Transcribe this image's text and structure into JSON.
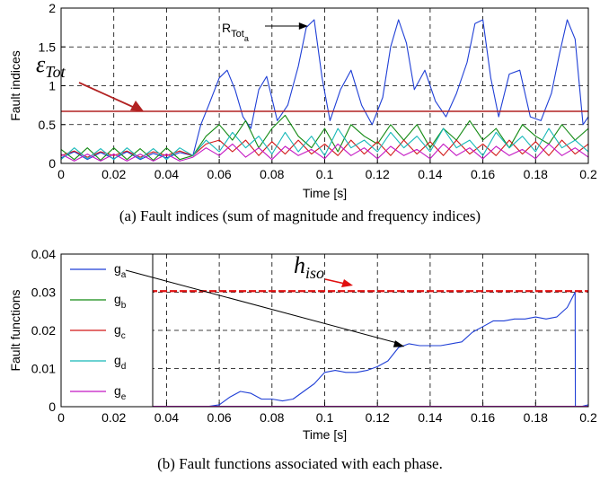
{
  "chart_data": [
    {
      "type": "line",
      "caption": "(a) Fault indices (sum of magnitude and frequency indices)",
      "xlabel": "Time [s]",
      "ylabel": "Fault indices",
      "xlim": [
        0,
        0.2
      ],
      "ylim": [
        0,
        2
      ],
      "xticks": [
        "0",
        "0.02",
        "0.04",
        "0.06",
        "0.08",
        "0.1",
        "0.12",
        "0.14",
        "0.16",
        "0.18",
        "0.2"
      ],
      "yticks": [
        "0",
        "0.5",
        "1",
        "1.5",
        "2"
      ],
      "grid": true,
      "threshold": {
        "label": "ε",
        "label_sub": "Tot",
        "value": 0.67,
        "color": "#b22222"
      },
      "annotation": {
        "label": "R",
        "label_sub": "Tot",
        "label_subsub": "a",
        "x": 0.095,
        "y": 1.85
      },
      "series": [
        {
          "color": "#1f3fd6",
          "x": [
            0,
            0.005,
            0.01,
            0.015,
            0.02,
            0.025,
            0.03,
            0.035,
            0.04,
            0.045,
            0.05,
            0.053,
            0.056,
            0.06,
            0.063,
            0.066,
            0.069,
            0.072,
            0.075,
            0.078,
            0.082,
            0.086,
            0.09,
            0.093,
            0.096,
            0.099,
            0.102,
            0.106,
            0.11,
            0.114,
            0.118,
            0.122,
            0.125,
            0.128,
            0.131,
            0.134,
            0.138,
            0.142,
            0.146,
            0.15,
            0.154,
            0.157,
            0.16,
            0.163,
            0.166,
            0.17,
            0.174,
            0.178,
            0.182,
            0.186,
            0.189,
            0.192,
            0.195,
            0.198,
            0.2
          ],
          "y": [
            0.07,
            0.15,
            0.05,
            0.14,
            0.06,
            0.15,
            0.05,
            0.13,
            0.07,
            0.14,
            0.1,
            0.5,
            0.75,
            1.1,
            1.2,
            0.95,
            0.6,
            0.45,
            0.95,
            1.12,
            0.55,
            0.75,
            1.25,
            1.75,
            1.85,
            1.1,
            0.55,
            0.95,
            1.2,
            0.75,
            0.5,
            0.85,
            1.5,
            1.85,
            1.55,
            0.95,
            1.2,
            0.8,
            0.6,
            0.9,
            1.3,
            1.8,
            1.85,
            1.1,
            0.6,
            1.15,
            1.2,
            0.6,
            0.55,
            0.9,
            1.4,
            1.85,
            1.6,
            0.5,
            0.6
          ]
        },
        {
          "color": "#138a13",
          "x": [
            0,
            0.005,
            0.01,
            0.015,
            0.02,
            0.025,
            0.03,
            0.035,
            0.04,
            0.045,
            0.05,
            0.055,
            0.06,
            0.065,
            0.07,
            0.075,
            0.08,
            0.085,
            0.09,
            0.095,
            0.1,
            0.105,
            0.11,
            0.115,
            0.12,
            0.125,
            0.13,
            0.135,
            0.14,
            0.145,
            0.15,
            0.155,
            0.16,
            0.165,
            0.17,
            0.175,
            0.18,
            0.185,
            0.19,
            0.195,
            0.2
          ],
          "y": [
            0.18,
            0.05,
            0.2,
            0.04,
            0.2,
            0.05,
            0.19,
            0.04,
            0.2,
            0.05,
            0.1,
            0.35,
            0.5,
            0.3,
            0.55,
            0.2,
            0.45,
            0.62,
            0.35,
            0.2,
            0.45,
            0.15,
            0.5,
            0.35,
            0.25,
            0.5,
            0.3,
            0.5,
            0.2,
            0.45,
            0.3,
            0.55,
            0.3,
            0.45,
            0.2,
            0.5,
            0.35,
            0.25,
            0.5,
            0.3,
            0.45
          ]
        },
        {
          "color": "#d21818",
          "x": [
            0,
            0.005,
            0.01,
            0.015,
            0.02,
            0.025,
            0.03,
            0.035,
            0.04,
            0.045,
            0.05,
            0.055,
            0.06,
            0.065,
            0.07,
            0.075,
            0.08,
            0.085,
            0.09,
            0.095,
            0.1,
            0.105,
            0.11,
            0.115,
            0.12,
            0.125,
            0.13,
            0.135,
            0.14,
            0.145,
            0.15,
            0.155,
            0.16,
            0.165,
            0.17,
            0.175,
            0.18,
            0.185,
            0.19,
            0.195,
            0.2
          ],
          "y": [
            0.1,
            0.16,
            0.08,
            0.15,
            0.1,
            0.16,
            0.08,
            0.15,
            0.1,
            0.16,
            0.1,
            0.25,
            0.3,
            0.15,
            0.3,
            0.1,
            0.28,
            0.12,
            0.3,
            0.12,
            0.25,
            0.1,
            0.3,
            0.12,
            0.28,
            0.1,
            0.3,
            0.12,
            0.28,
            0.1,
            0.3,
            0.12,
            0.25,
            0.1,
            0.3,
            0.12,
            0.28,
            0.1,
            0.3,
            0.12,
            0.25
          ]
        },
        {
          "color": "#16b8b8",
          "x": [
            0,
            0.005,
            0.01,
            0.015,
            0.02,
            0.025,
            0.03,
            0.035,
            0.04,
            0.045,
            0.05,
            0.055,
            0.06,
            0.065,
            0.07,
            0.075,
            0.08,
            0.085,
            0.09,
            0.095,
            0.1,
            0.105,
            0.11,
            0.115,
            0.12,
            0.125,
            0.13,
            0.135,
            0.14,
            0.145,
            0.15,
            0.155,
            0.16,
            0.165,
            0.17,
            0.175,
            0.18,
            0.185,
            0.19,
            0.195,
            0.2
          ],
          "y": [
            0.05,
            0.2,
            0.06,
            0.19,
            0.05,
            0.2,
            0.06,
            0.19,
            0.05,
            0.2,
            0.1,
            0.3,
            0.15,
            0.4,
            0.2,
            0.35,
            0.12,
            0.4,
            0.15,
            0.35,
            0.1,
            0.45,
            0.2,
            0.3,
            0.15,
            0.4,
            0.2,
            0.35,
            0.15,
            0.45,
            0.2,
            0.3,
            0.1,
            0.4,
            0.2,
            0.35,
            0.15,
            0.45,
            0.2,
            0.3,
            0.15
          ]
        },
        {
          "color": "#c418c4",
          "x": [
            0,
            0.005,
            0.01,
            0.015,
            0.02,
            0.025,
            0.03,
            0.035,
            0.04,
            0.045,
            0.05,
            0.055,
            0.06,
            0.065,
            0.07,
            0.075,
            0.08,
            0.085,
            0.09,
            0.095,
            0.1,
            0.105,
            0.11,
            0.115,
            0.12,
            0.125,
            0.13,
            0.135,
            0.14,
            0.145,
            0.15,
            0.155,
            0.16,
            0.165,
            0.17,
            0.175,
            0.18,
            0.185,
            0.19,
            0.195,
            0.2
          ],
          "y": [
            0.12,
            0.03,
            0.12,
            0.03,
            0.12,
            0.03,
            0.12,
            0.03,
            0.12,
            0.03,
            0.08,
            0.2,
            0.1,
            0.25,
            0.08,
            0.2,
            0.05,
            0.22,
            0.1,
            0.18,
            0.06,
            0.25,
            0.1,
            0.2,
            0.06,
            0.22,
            0.1,
            0.18,
            0.06,
            0.25,
            0.1,
            0.2,
            0.06,
            0.22,
            0.1,
            0.18,
            0.06,
            0.25,
            0.1,
            0.2,
            0.08
          ]
        }
      ]
    },
    {
      "type": "line",
      "caption": "(b) Fault functions associated with each phase.",
      "xlabel": "Time [s]",
      "ylabel": "Fault functions",
      "xlim": [
        0,
        0.2
      ],
      "ylim": [
        0,
        0.04
      ],
      "xticks": [
        "0",
        "0.02",
        "0.04",
        "0.06",
        "0.08",
        "0.1",
        "0.12",
        "0.14",
        "0.16",
        "0.18",
        "0.2"
      ],
      "yticks": [
        "0",
        "0.01",
        "0.02",
        "0.03",
        "0.04"
      ],
      "grid": true,
      "threshold": {
        "label": "h",
        "label_sub": "iso",
        "value": 0.0303,
        "color": "#e01010"
      },
      "legend": [
        {
          "name": "g",
          "sub": "a",
          "color": "#1f3fd6"
        },
        {
          "name": "g",
          "sub": "b",
          "color": "#138a13"
        },
        {
          "name": "g",
          "sub": "c",
          "color": "#d21818"
        },
        {
          "name": "g",
          "sub": "d",
          "color": "#16b8b8"
        },
        {
          "name": "g",
          "sub": "e",
          "color": "#c418c4"
        }
      ],
      "series": [
        {
          "name": "ga",
          "color": "#1f3fd6",
          "x": [
            0.03,
            0.05,
            0.055,
            0.06,
            0.064,
            0.068,
            0.072,
            0.076,
            0.08,
            0.084,
            0.088,
            0.092,
            0.096,
            0.1,
            0.104,
            0.108,
            0.112,
            0.116,
            0.12,
            0.124,
            0.128,
            0.132,
            0.136,
            0.14,
            0.144,
            0.148,
            0.152,
            0.156,
            0.16,
            0.164,
            0.168,
            0.172,
            0.176,
            0.18,
            0.184,
            0.188,
            0.192,
            0.195,
            0.1951,
            0.197,
            0.2
          ],
          "y": [
            0,
            0,
            0,
            0.0005,
            0.0025,
            0.004,
            0.0035,
            0.002,
            0.002,
            0.0015,
            0.002,
            0.004,
            0.006,
            0.009,
            0.0095,
            0.009,
            0.009,
            0.0095,
            0.0105,
            0.012,
            0.0155,
            0.0165,
            0.016,
            0.016,
            0.016,
            0.0165,
            0.017,
            0.0195,
            0.021,
            0.0225,
            0.0225,
            0.023,
            0.023,
            0.0235,
            0.023,
            0.0235,
            0.026,
            0.03,
            0,
            0,
            0.0005
          ]
        },
        {
          "name": "gb",
          "color": "#138a13",
          "x": [
            0.03,
            0.2
          ],
          "y": [
            0,
            0
          ]
        },
        {
          "name": "gc",
          "color": "#d21818",
          "x": [
            0.03,
            0.2
          ],
          "y": [
            0,
            0
          ]
        },
        {
          "name": "gd",
          "color": "#16b8b8",
          "x": [
            0.03,
            0.2
          ],
          "y": [
            0,
            0
          ]
        },
        {
          "name": "ge",
          "color": "#c418c4",
          "x": [
            0.03,
            0.2
          ],
          "y": [
            0.0001,
            0.0001
          ]
        }
      ]
    }
  ]
}
